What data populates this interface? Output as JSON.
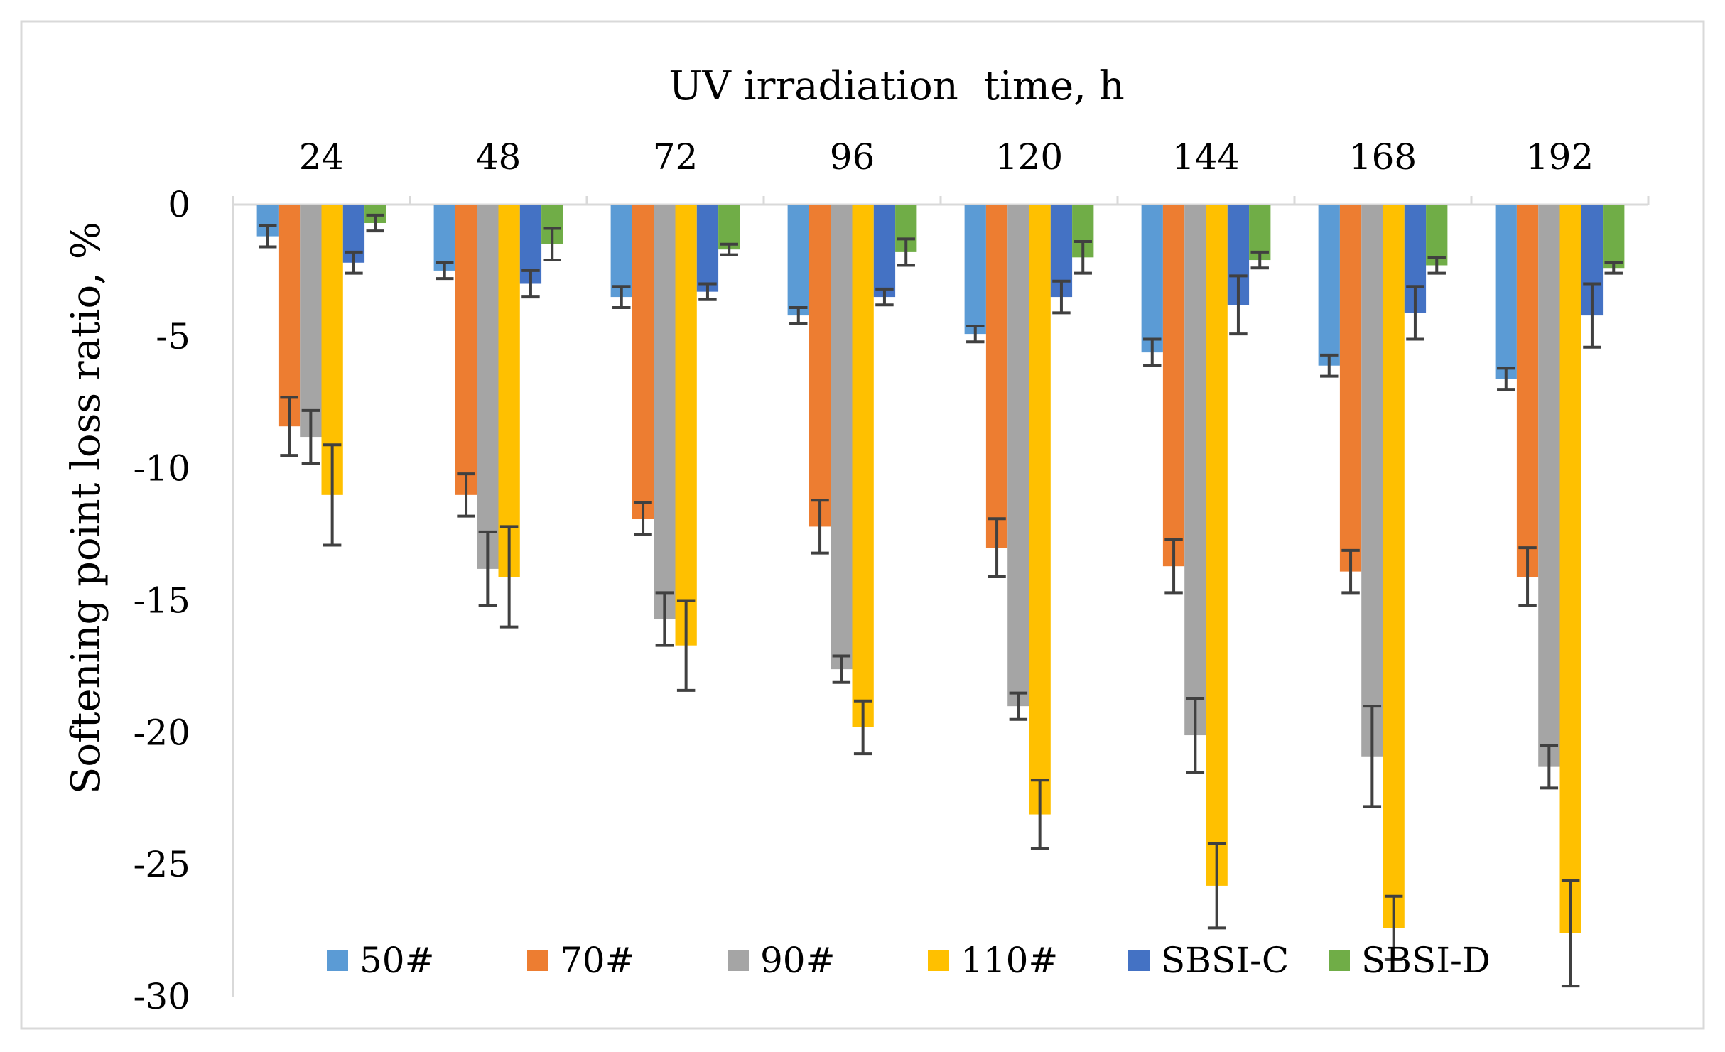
{
  "chart_data": {
    "type": "bar",
    "title": "",
    "xlabel": "UV irradiation  time, h",
    "ylabel": "Softening point loss ratio, %",
    "categories": [
      "24",
      "48",
      "72",
      "96",
      "120",
      "144",
      "168",
      "192"
    ],
    "ylim": [
      -30,
      0
    ],
    "yticks": [
      0,
      -5,
      -10,
      -15,
      -20,
      -25,
      -30
    ],
    "ytick_labels": [
      "0",
      "-5",
      "-10",
      "-15",
      "-20",
      "-25",
      "-30"
    ],
    "x_axis_position": "top",
    "grid": false,
    "legend_position": "bottom",
    "series": [
      {
        "name": "50#",
        "color": "#5B9BD5",
        "values": [
          -1.2,
          -2.5,
          -3.5,
          -4.2,
          -4.9,
          -5.6,
          -6.1,
          -6.6
        ],
        "errors": [
          0.4,
          0.3,
          0.4,
          0.3,
          0.3,
          0.5,
          0.4,
          0.4
        ]
      },
      {
        "name": "70#",
        "color": "#ED7D31",
        "values": [
          -8.4,
          -11.0,
          -11.9,
          -12.2,
          -13.0,
          -13.7,
          -13.9,
          -14.1
        ],
        "errors": [
          1.1,
          0.8,
          0.6,
          1.0,
          1.1,
          1.0,
          0.8,
          1.1
        ]
      },
      {
        "name": "90#",
        "color": "#A5A5A5",
        "values": [
          -8.8,
          -13.8,
          -15.7,
          -17.6,
          -19.0,
          -20.1,
          -20.9,
          -21.3
        ],
        "errors": [
          1.0,
          1.4,
          1.0,
          0.5,
          0.5,
          1.4,
          1.9,
          0.8
        ]
      },
      {
        "name": "110#",
        "color": "#FFC000",
        "values": [
          -11.0,
          -14.1,
          -16.7,
          -19.8,
          -23.1,
          -25.8,
          -27.4,
          -27.6
        ],
        "errors": [
          1.9,
          1.9,
          1.7,
          1.0,
          1.3,
          1.6,
          1.2,
          2.0
        ]
      },
      {
        "name": "SBSI-C",
        "color": "#4472C4",
        "values": [
          -2.2,
          -3.0,
          -3.3,
          -3.5,
          -3.5,
          -3.8,
          -4.1,
          -4.2
        ],
        "errors": [
          0.4,
          0.5,
          0.3,
          0.3,
          0.6,
          1.1,
          1.0,
          1.2
        ]
      },
      {
        "name": "SBSI-D",
        "color": "#70AD47",
        "values": [
          -0.7,
          -1.5,
          -1.7,
          -1.8,
          -2.0,
          -2.1,
          -2.3,
          -2.4
        ],
        "errors": [
          0.3,
          0.6,
          0.2,
          0.5,
          0.6,
          0.3,
          0.3,
          0.2
        ]
      }
    ]
  }
}
